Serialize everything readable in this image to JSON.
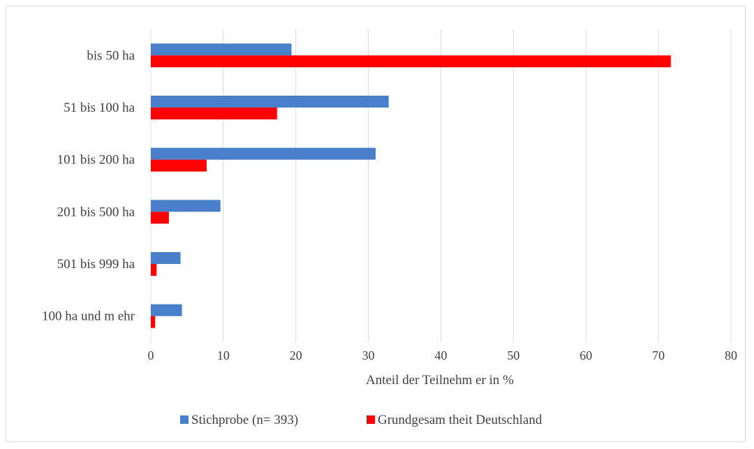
{
  "chart_data": {
    "type": "bar",
    "orientation": "horizontal",
    "categories": [
      "bis 50 ha",
      "51 bis 100 ha",
      "101 bis 200 ha",
      "201 bis 500 ha",
      "501 bis 999 ha",
      "100 ha und m ehr"
    ],
    "series": [
      {
        "name": "Stichprobe (n= 393)",
        "color": "#4a7fcc",
        "values": [
          19.4,
          32.8,
          31.0,
          9.6,
          4.1,
          4.3
        ]
      },
      {
        "name": "Grundgesam theit Deutschland",
        "color": "#ff0000",
        "values": [
          71.7,
          17.4,
          7.7,
          2.5,
          0.8,
          0.6
        ]
      }
    ],
    "xlabel": "Anteil der Teilnehm er in %",
    "ylabel": "",
    "xlim": [
      0,
      80
    ],
    "xticks": [
      0,
      10,
      20,
      30,
      40,
      50,
      60,
      70,
      80
    ],
    "grid": "vertical",
    "legend": "bottom"
  }
}
